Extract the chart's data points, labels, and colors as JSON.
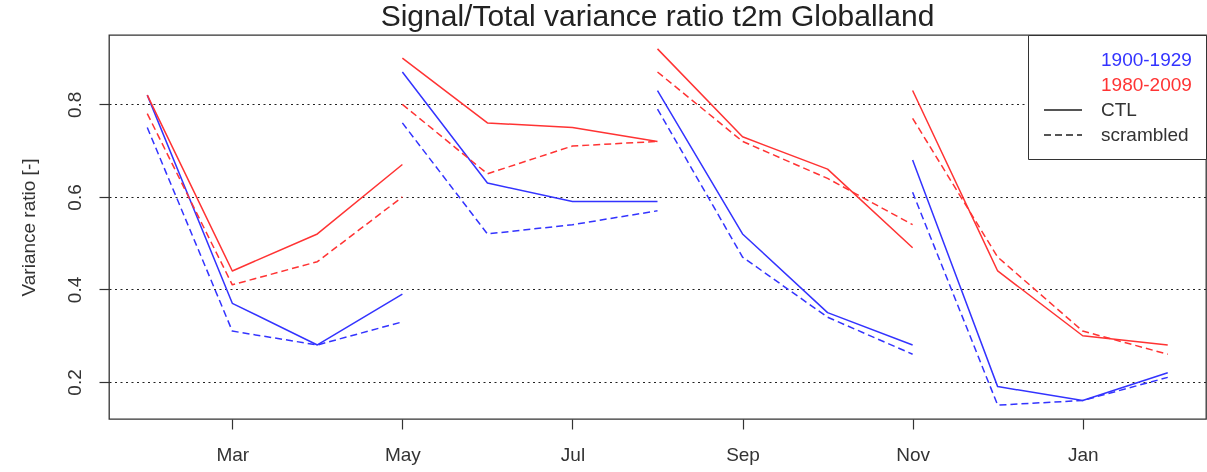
{
  "chart_data": {
    "type": "line",
    "title": "Signal/Total variance ratio t2m Globalland",
    "ylabel": "Variance ratio [-]",
    "categories": [
      null,
      "Mar",
      null,
      "May",
      null,
      "Jul",
      null,
      "Sep",
      null,
      "Nov",
      null,
      "Jan",
      null
    ],
    "series": [
      {
        "name": "1900-1929",
        "color": "#3333ff",
        "line_style": "solid",
        "values": [
          0.82,
          0.37,
          0.28,
          0.39,
          null,
          null,
          null,
          null,
          null,
          null,
          null,
          null,
          null
        ]
      },
      {
        "color": "#3333ff",
        "line_style": "solid",
        "values": [
          null,
          null,
          null,
          0.87,
          0.63,
          0.59,
          0.59,
          null,
          null,
          null,
          null,
          null,
          null
        ]
      },
      {
        "color": "#3333ff",
        "line_style": "solid",
        "values": [
          null,
          null,
          null,
          null,
          null,
          null,
          0.83,
          0.52,
          0.35,
          0.28,
          null,
          null,
          null
        ]
      },
      {
        "color": "#3333ff",
        "line_style": "solid",
        "values": [
          null,
          null,
          null,
          null,
          null,
          null,
          null,
          null,
          null,
          0.68,
          0.19,
          0.16,
          0.22
        ]
      },
      {
        "color": "#3333ff",
        "line_style": "dashed",
        "values": [
          0.75,
          0.31,
          0.28,
          0.33,
          null,
          null,
          null,
          null,
          null,
          null,
          null,
          null,
          null
        ]
      },
      {
        "color": "#3333ff",
        "line_style": "dashed",
        "values": [
          null,
          null,
          null,
          0.76,
          0.52,
          0.54,
          0.57,
          null,
          null,
          null,
          null,
          null,
          null
        ]
      },
      {
        "color": "#3333ff",
        "line_style": "dashed",
        "values": [
          null,
          null,
          null,
          null,
          null,
          null,
          0.79,
          0.47,
          0.34,
          0.26,
          null,
          null,
          null
        ]
      },
      {
        "color": "#3333ff",
        "line_style": "dashed",
        "values": [
          null,
          null,
          null,
          null,
          null,
          null,
          null,
          null,
          null,
          0.61,
          0.15,
          0.16,
          0.21
        ]
      },
      {
        "name": "1980-2009",
        "color": "#ff3333",
        "line_style": "solid",
        "values": [
          0.82,
          0.44,
          0.52,
          0.67,
          null,
          null,
          null,
          null,
          null,
          null,
          null,
          null,
          null
        ]
      },
      {
        "color": "#ff3333",
        "line_style": "solid",
        "values": [
          null,
          null,
          null,
          0.9,
          0.76,
          0.75,
          0.72,
          null,
          null,
          null,
          null,
          null,
          null
        ]
      },
      {
        "color": "#ff3333",
        "line_style": "solid",
        "values": [
          null,
          null,
          null,
          null,
          null,
          null,
          0.92,
          0.73,
          0.66,
          0.49,
          null,
          null,
          null
        ]
      },
      {
        "color": "#ff3333",
        "line_style": "solid",
        "values": [
          null,
          null,
          null,
          null,
          null,
          null,
          null,
          null,
          null,
          0.83,
          0.44,
          0.3,
          0.28
        ]
      },
      {
        "color": "#ff3333",
        "line_style": "dashed",
        "values": [
          0.78,
          0.41,
          0.46,
          0.6,
          null,
          null,
          null,
          null,
          null,
          null,
          null,
          null,
          null
        ]
      },
      {
        "color": "#ff3333",
        "line_style": "dashed",
        "values": [
          null,
          null,
          null,
          0.8,
          0.65,
          0.71,
          0.72,
          null,
          null,
          null,
          null,
          null,
          null
        ]
      },
      {
        "color": "#ff3333",
        "line_style": "dashed",
        "values": [
          null,
          null,
          null,
          null,
          null,
          null,
          0.87,
          0.72,
          0.64,
          0.54,
          null,
          null,
          null
        ]
      },
      {
        "color": "#ff3333",
        "line_style": "dashed",
        "values": [
          null,
          null,
          null,
          null,
          null,
          null,
          null,
          null,
          null,
          0.77,
          0.47,
          0.31,
          0.26
        ]
      }
    ],
    "annotations": [
      "CTL",
      "scrambled"
    ],
    "ylim": [
      0.12,
      0.95
    ],
    "yticks": [
      0.2,
      0.4,
      0.6,
      0.8
    ],
    "grid": "y",
    "legend": "top right"
  }
}
